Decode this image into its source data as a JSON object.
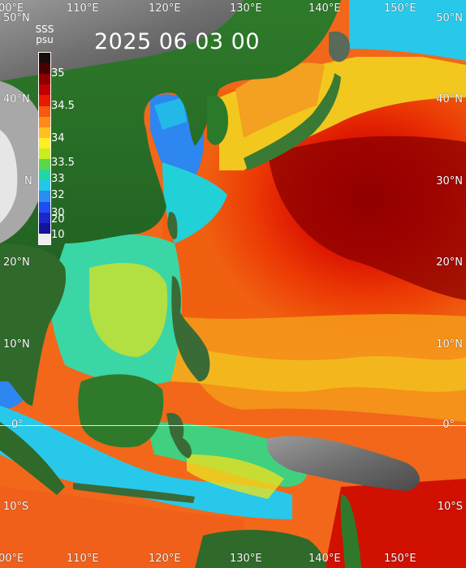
{
  "title": {
    "datetime": "2025 06 03 00"
  },
  "variable": {
    "name": "SSS",
    "unit": "psu"
  },
  "colorbar": {
    "ticks": [
      "35",
      "34.5",
      "34",
      "33.5",
      "33",
      "32",
      "30",
      "20",
      "10"
    ],
    "colors": [
      "#1b0b0b",
      "#4a0000",
      "#8b0000",
      "#c00000",
      "#e81a00",
      "#f55a10",
      "#ff8a1a",
      "#ffc020",
      "#ffee22",
      "#c8ee22",
      "#5ad84a",
      "#22d8a0",
      "#22c8e8",
      "#2a8cf0",
      "#1f4ef0",
      "#1a28c8",
      "#12129a",
      "#eeeeee"
    ]
  },
  "axes": {
    "lon_top": [
      "00°E",
      "110°E",
      "120°E",
      "130°E",
      "140°E",
      "150°E"
    ],
    "lon_bottom": [
      "00°E",
      "110°E",
      "120°E",
      "130°E",
      "140°E",
      "150°E"
    ],
    "lat_left": [
      "50°N",
      "40°N",
      "N",
      "20°N",
      "10°N",
      "0°",
      "10°S"
    ],
    "lat_right": [
      "50°N",
      "40°N",
      "30°N",
      "20°N",
      "10°N",
      "0°",
      "10°S"
    ]
  }
}
